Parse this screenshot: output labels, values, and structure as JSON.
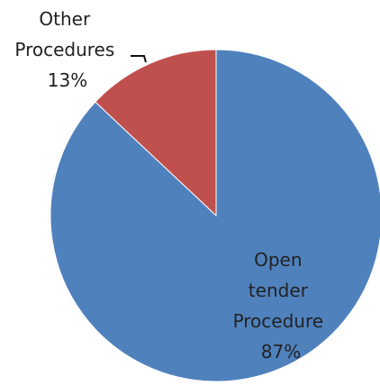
{
  "chart_data": {
    "type": "pie",
    "slices": [
      {
        "label_lines": [
          "Open",
          "tender",
          "Procedure",
          "87%"
        ],
        "value": 87,
        "color": "#4f81bd"
      },
      {
        "label_lines": [
          "Other",
          "Procedures",
          "13%"
        ],
        "value": 13,
        "color": "#c0504d"
      }
    ],
    "start": "12 o'clock",
    "direction": "clockwise",
    "legend": "none"
  }
}
